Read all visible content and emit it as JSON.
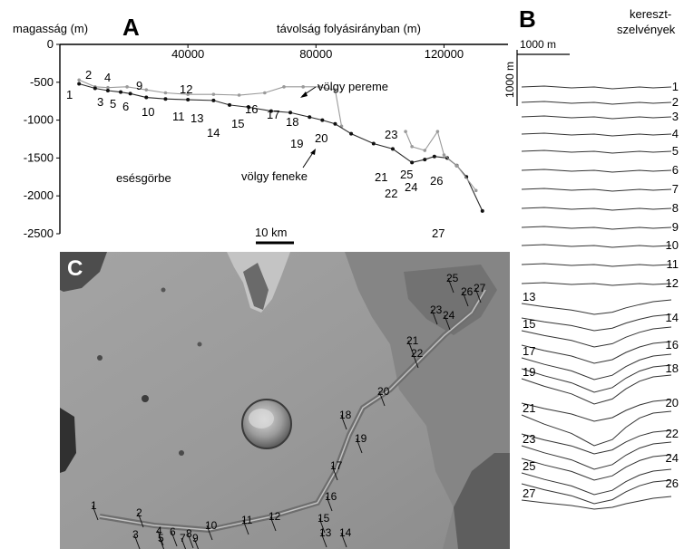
{
  "panel_a": {
    "letter": "A",
    "y_axis_label": "magasság (m)",
    "x_axis_label": "távolság folyásirányban (m)",
    "x_ticks": [
      "40000",
      "80000",
      "120000"
    ],
    "y_ticks": [
      "0",
      "-500",
      "-1000",
      "-1500",
      "-2000",
      "-2500"
    ],
    "annotations": {
      "rim": "völgy pereme",
      "floor": "völgy feneke",
      "profile": "esésgörbe"
    },
    "scalebar": "10 km",
    "station_labels": [
      "1",
      "2",
      "3",
      "4",
      "5",
      "6",
      "9",
      "10",
      "11",
      "12",
      "13",
      "14",
      "15",
      "16",
      "17",
      "18",
      "19",
      "20",
      "21",
      "22",
      "23",
      "24",
      "25",
      "26",
      "27"
    ]
  },
  "panel_b": {
    "letter": "B",
    "title_line1": "kereszt-",
    "title_line2": "szelvények",
    "scale_horizontal": "1000 m",
    "scale_vertical": "1000 m",
    "profile_labels": [
      "1",
      "2",
      "3",
      "4",
      "5",
      "6",
      "7",
      "8",
      "9",
      "10",
      "11",
      "12",
      "13",
      "14",
      "15",
      "16",
      "17",
      "18",
      "19",
      "20",
      "21",
      "22",
      "23",
      "24",
      "25",
      "26",
      "27"
    ]
  },
  "panel_c": {
    "letter": "C",
    "section_labels": [
      "1",
      "2",
      "3",
      "4",
      "5",
      "6",
      "7",
      "8",
      "9",
      "10",
      "11",
      "12",
      "13",
      "14",
      "15",
      "16",
      "17",
      "18",
      "19",
      "20",
      "21",
      "22",
      "23",
      "24",
      "25",
      "26",
      "27"
    ]
  },
  "chart_data": {
    "type": "line",
    "xlim": [
      0,
      140000
    ],
    "ylim": [
      -2500,
      0
    ],
    "series": [
      {
        "x": [
          6000,
          11000,
          15000,
          21000,
          27000,
          33000,
          40000,
          48000,
          56000,
          64000,
          70000,
          76000,
          81000,
          86000,
          88000
        ],
        "y": [
          -470,
          -560,
          -570,
          -560,
          -600,
          -640,
          -660,
          -660,
          -670,
          -640,
          -560,
          -560,
          -560,
          -600,
          -1080
        ]
      },
      {
        "x": [
          6000,
          11000,
          15000,
          19000,
          22000,
          27000,
          33000,
          40000,
          48000,
          53000,
          59000,
          66000,
          72000,
          78000,
          82000,
          86000,
          91000,
          98000,
          104000,
          110000,
          114000,
          117000,
          121000,
          124000,
          127000,
          132000
        ],
        "y": [
          -520,
          -580,
          -610,
          -630,
          -650,
          -700,
          -720,
          -730,
          -740,
          -800,
          -830,
          -880,
          -900,
          -960,
          -1000,
          -1050,
          -1180,
          -1310,
          -1380,
          -1560,
          -1520,
          -1480,
          -1500,
          -1600,
          -1750,
          -2200
        ]
      }
    ]
  }
}
